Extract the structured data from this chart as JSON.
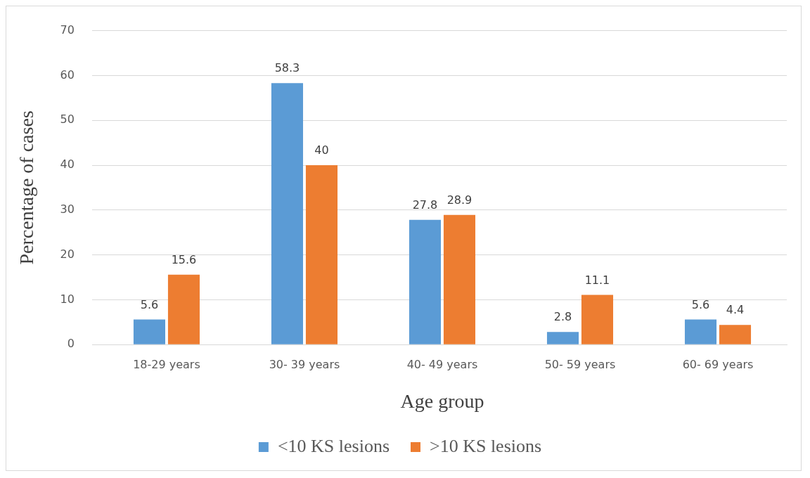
{
  "chart_data": {
    "type": "bar",
    "xlabel": "Age group",
    "ylabel": "Percentage of cases",
    "categories": [
      "18-29 years",
      "30- 39 years",
      "40- 49 years",
      "50- 59 years",
      "60- 69 years"
    ],
    "series": [
      {
        "name": "<10 KS lesions",
        "color": "#5b9bd5",
        "values": [
          5.6,
          58.3,
          27.8,
          2.8,
          5.6
        ]
      },
      {
        "name": ">10 KS lesions",
        "color": "#ed7d31",
        "values": [
          15.6,
          40,
          28.9,
          11.1,
          4.4
        ]
      }
    ],
    "ylim": [
      0,
      70
    ],
    "yticks": [
      0,
      10,
      20,
      30,
      40,
      50,
      60,
      70
    ],
    "grid": "y",
    "legend": "bottom",
    "data_labels": true
  }
}
